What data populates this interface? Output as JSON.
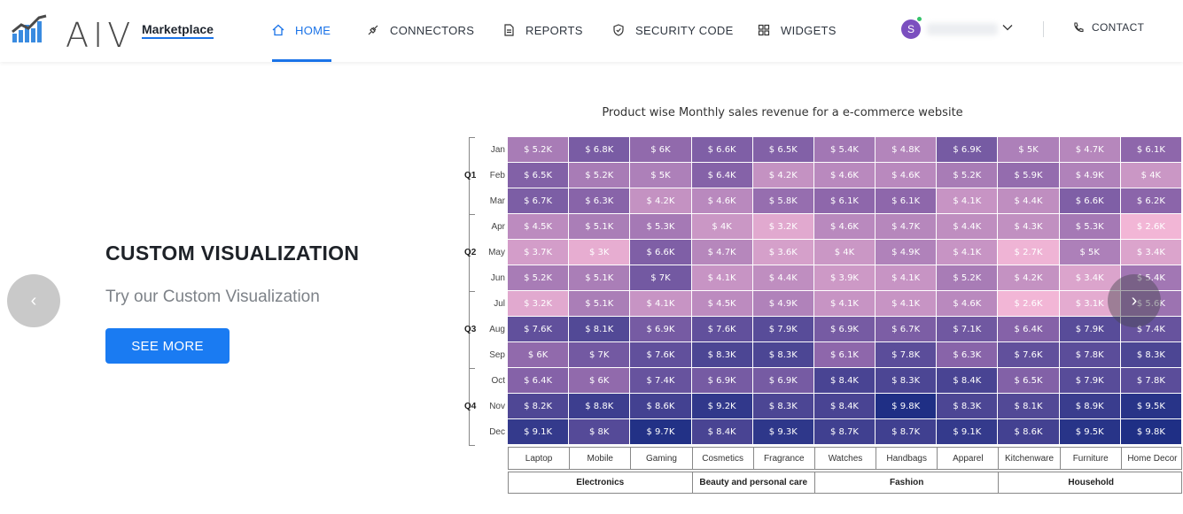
{
  "brand": {
    "logo_text": "AIV",
    "marketplace": "Marketplace"
  },
  "nav": [
    {
      "label": "HOME",
      "icon": "home-icon"
    },
    {
      "label": "CONNECTORS",
      "icon": "plug-icon"
    },
    {
      "label": "REPORTS",
      "icon": "document-icon"
    },
    {
      "label": "SECURITY CODE",
      "icon": "shield-icon"
    },
    {
      "label": "WIDGETS",
      "icon": "grid-icon"
    }
  ],
  "user": {
    "avatar_letter": "S",
    "online": true
  },
  "contact": {
    "label": "CONTACT",
    "icon": "phone-icon"
  },
  "hero": {
    "title": "CUSTOM VISUALIZATION",
    "subtitle": "Try our Custom Visualization",
    "button": "SEE MORE",
    "prev": "‹",
    "next": "›"
  },
  "colors": {
    "accent": "#1a7bf2",
    "heat_low": "#f2b6d6",
    "heat_high": "#1f2f85"
  },
  "chart_data": {
    "type": "heatmap",
    "title": "Product wise Monthly sales revenue for a e-commerce website",
    "quarters": [
      {
        "label": "Q1",
        "months": [
          "Jan",
          "Feb",
          "Mar"
        ]
      },
      {
        "label": "Q2",
        "months": [
          "Apr",
          "May",
          "Jun"
        ]
      },
      {
        "label": "Q3",
        "months": [
          "Jul",
          "Aug",
          "Sep"
        ]
      },
      {
        "label": "Q4",
        "months": [
          "Oct",
          "Nov",
          "Dec"
        ]
      }
    ],
    "months": [
      "Jan",
      "Feb",
      "Mar",
      "Apr",
      "May",
      "Jun",
      "Jul",
      "Aug",
      "Sep",
      "Oct",
      "Nov",
      "Dec"
    ],
    "categories": [
      "Laptop",
      "Mobile",
      "Gaming",
      "Cosmetics",
      "Fragrance",
      "Watches",
      "Handbags",
      "Apparel",
      "Kitchenware",
      "Furniture",
      "Home Decor"
    ],
    "groups": [
      {
        "label": "Electronics",
        "span": 3
      },
      {
        "label": "Beauty and personal care",
        "span": 2
      },
      {
        "label": "Fashion",
        "span": 3
      },
      {
        "label": "Household",
        "span": 3
      }
    ],
    "values": [
      [
        5.2,
        6.8,
        6,
        6.6,
        6.5,
        5.4,
        4.8,
        6.9,
        5,
        4.7,
        6.1
      ],
      [
        6.5,
        5.2,
        5,
        6.4,
        4.2,
        4.6,
        4.6,
        5.2,
        5.9,
        4.9,
        4
      ],
      [
        6.7,
        6.3,
        4.2,
        4.6,
        5.8,
        6.1,
        6.1,
        4.1,
        4.4,
        6.6,
        6.2
      ],
      [
        4.5,
        5.1,
        5.3,
        4,
        3.2,
        4.6,
        4.7,
        4.4,
        4.3,
        5.3,
        2.6
      ],
      [
        3.7,
        3,
        6.6,
        4.7,
        3.6,
        4,
        4.9,
        4.1,
        2.7,
        5,
        3.4
      ],
      [
        5.2,
        5.1,
        7,
        4.1,
        4.4,
        3.9,
        4.1,
        5.2,
        4.2,
        3.4,
        5.4
      ],
      [
        3.2,
        5.1,
        4.1,
        4.5,
        4.9,
        4.1,
        4.1,
        4.6,
        2.6,
        3.1,
        5.6
      ],
      [
        7.6,
        8.1,
        6.9,
        7.6,
        7.9,
        6.9,
        6.7,
        7.1,
        6.4,
        7.9,
        7.4
      ],
      [
        6,
        7,
        7.6,
        8.3,
        8.3,
        6.1,
        7.8,
        6.3,
        7.6,
        7.8,
        8.3
      ],
      [
        6.4,
        6,
        7.4,
        6.9,
        6.9,
        8.4,
        8.3,
        8.4,
        6.5,
        7.9,
        7.8
      ],
      [
        8.2,
        8.8,
        8.6,
        9.2,
        8.3,
        8.4,
        9.8,
        8.3,
        8.1,
        8.9,
        9.5
      ],
      [
        9.1,
        8,
        9.7,
        8.4,
        9.3,
        8.7,
        8.7,
        9.1,
        8.6,
        9.5,
        9.8
      ]
    ],
    "value_prefix": "$ ",
    "value_suffix": "K"
  }
}
